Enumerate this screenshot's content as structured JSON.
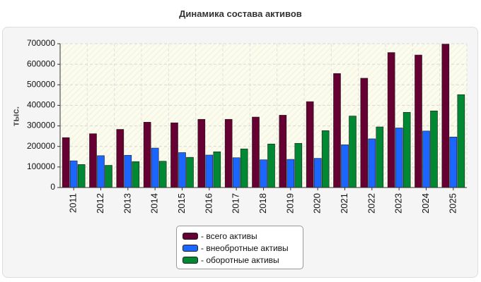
{
  "chart_data": {
    "type": "bar",
    "title": "Динамика состава активов",
    "ylabel": "тыс.",
    "xlabel": "",
    "ylim": [
      0,
      700000
    ],
    "yticks": [
      0,
      100000,
      200000,
      300000,
      400000,
      500000,
      600000,
      700000
    ],
    "grid": true,
    "legend_position": "bottom",
    "categories": [
      "2011",
      "2012",
      "2013",
      "2014",
      "2015",
      "2016",
      "2017",
      "2018",
      "2019",
      "2020",
      "2021",
      "2022",
      "2023",
      "2024",
      "2025"
    ],
    "series": [
      {
        "name": "- всего активы",
        "color": "#660033",
        "values": [
          243000,
          262000,
          283000,
          318000,
          315000,
          332000,
          332000,
          343000,
          352000,
          418000,
          555000,
          532000,
          657000,
          645000,
          698000
        ]
      },
      {
        "name": "- внеобротные активы",
        "color": "#1a66ff",
        "values": [
          130000,
          155000,
          157000,
          192000,
          170000,
          158000,
          145000,
          135000,
          137000,
          142000,
          208000,
          237000,
          290000,
          275000,
          246000
        ]
      },
      {
        "name": "- оборотные активы",
        "color": "#008833",
        "values": [
          112000,
          108000,
          126000,
          128000,
          147000,
          174000,
          188000,
          212000,
          215000,
          277000,
          348000,
          295000,
          366000,
          373000,
          452000
        ]
      }
    ]
  }
}
